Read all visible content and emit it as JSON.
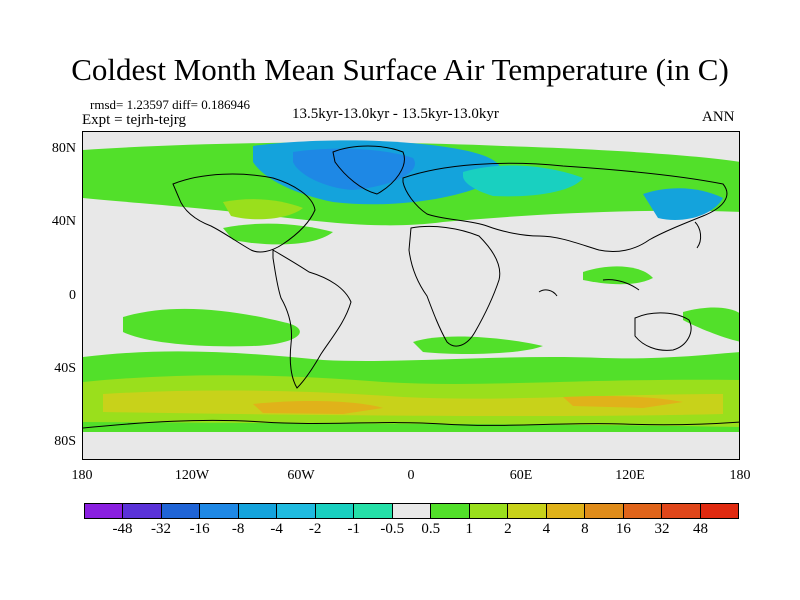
{
  "title": "Coldest Month Mean Surface Air Temperature (in C)",
  "stats": "rmsd= 1.23597  diff= 0.186946",
  "expt": "Expt = tejrh-tejrg",
  "subtitle": "13.5kyr-13.0kyr - 13.5kyr-13.0kyr",
  "season": "ANN",
  "y_axis": {
    "ticks": [
      "80N",
      "40N",
      "0",
      "40S",
      "80S"
    ]
  },
  "x_axis": {
    "ticks": [
      "180",
      "120W",
      "60W",
      "0",
      "60E",
      "120E",
      "180"
    ]
  },
  "colorbar": {
    "labels": [
      "-48",
      "-32",
      "-16",
      "-8",
      "-4",
      "-2",
      "-1",
      "-0.5",
      "0.5",
      "1",
      "2",
      "4",
      "8",
      "16",
      "32",
      "48"
    ],
    "colors": [
      "#8a1fe0",
      "#5a32d8",
      "#1f64d6",
      "#1e88e5",
      "#14a3dc",
      "#1fbbe0",
      "#19d0c0",
      "#25e0a8",
      "#e8e8e8",
      "#52e02a",
      "#9adf1c",
      "#c8d21a",
      "#e0b21a",
      "#e08c1a",
      "#e0641a",
      "#e0461a",
      "#e02a10"
    ]
  },
  "map": {
    "type": "filled contour anomaly map",
    "projection": "cylindrical equidistant",
    "lon_range": [
      -180,
      180
    ],
    "lat_range": [
      -90,
      90
    ]
  }
}
